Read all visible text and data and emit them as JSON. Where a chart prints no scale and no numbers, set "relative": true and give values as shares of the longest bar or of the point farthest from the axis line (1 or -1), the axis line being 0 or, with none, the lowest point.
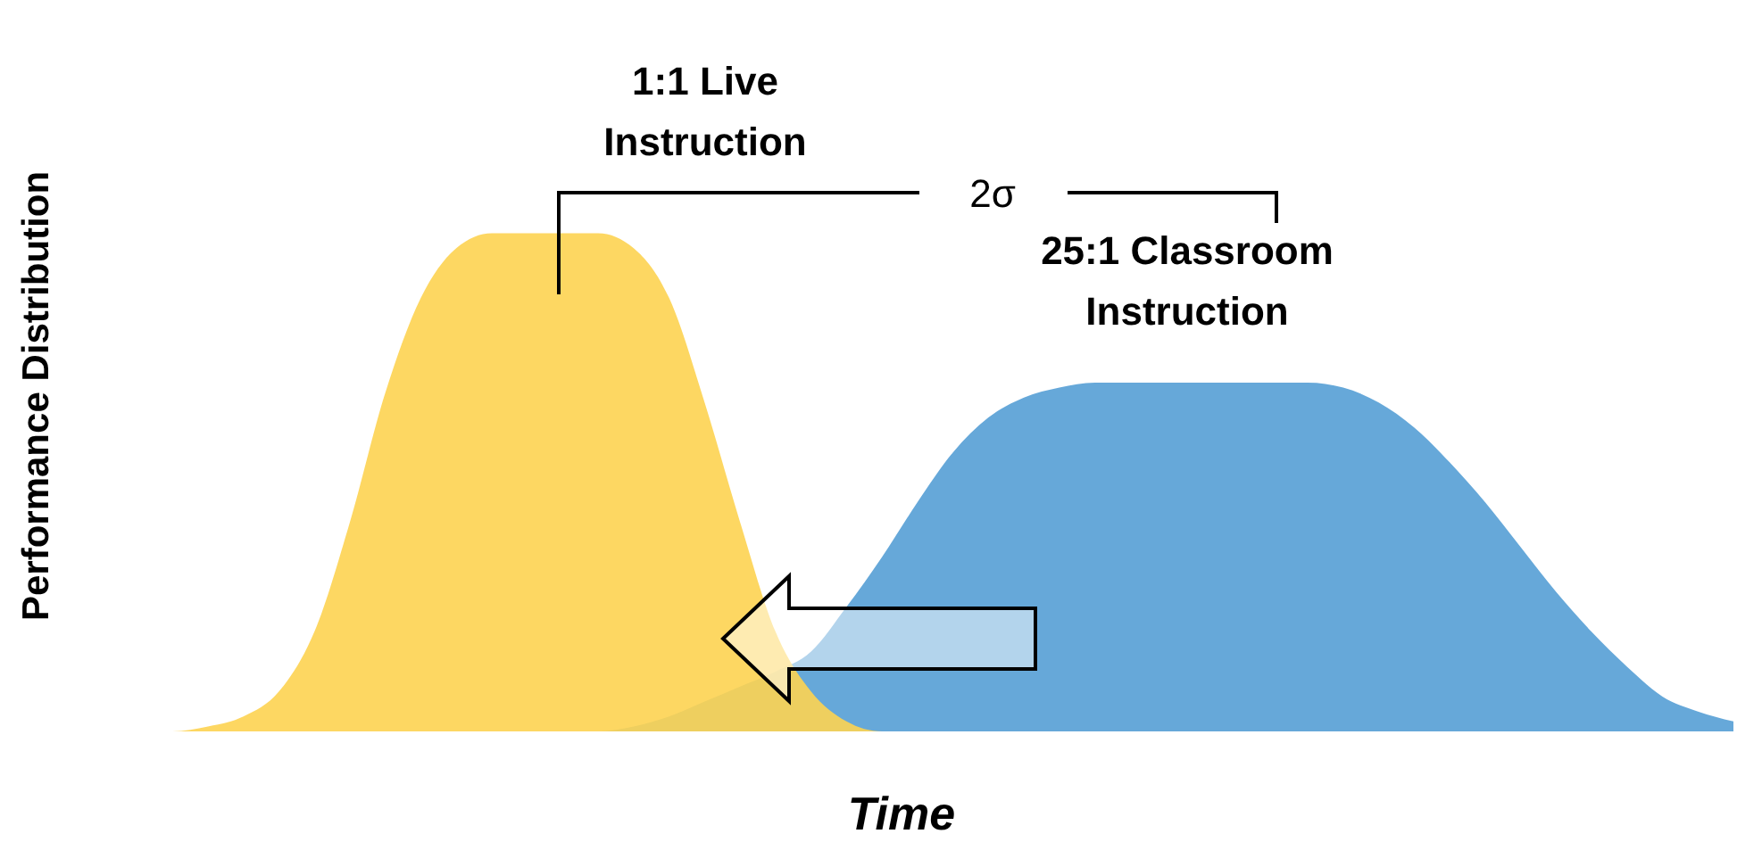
{
  "chart_data": {
    "type": "area",
    "relative": true,
    "xlabel": "Time",
    "ylabel": "Performance Distribution",
    "categories": [
      null,
      null,
      null,
      null,
      null,
      null,
      null,
      null,
      null,
      null,
      null,
      null,
      null,
      null,
      null,
      null,
      null,
      null,
      null,
      null,
      null,
      null,
      null,
      null,
      null,
      null,
      null,
      null,
      null,
      null,
      null,
      null,
      null,
      null,
      null,
      null,
      null,
      null,
      null,
      null,
      null,
      null,
      null,
      null,
      null,
      null,
      null,
      null
    ],
    "series": [
      {
        "name": "25:1 Classroom Instruction",
        "color": "#559fd5",
        "values": [
          0,
          0,
          0,
          0,
          0,
          0,
          0,
          0,
          0,
          0,
          0,
          0,
          0,
          0,
          0,
          0,
          0.01,
          0.03,
          0.06,
          0.09,
          0.12,
          0.16,
          0.25,
          0.35,
          0.46,
          0.56,
          0.63,
          0.67,
          0.69,
          0.7,
          0.7,
          0.7,
          0.7,
          0.7,
          0.7,
          0.7,
          0.69,
          0.66,
          0.61,
          0.54,
          0.46,
          0.37,
          0.28,
          0.2,
          0.13,
          0.07,
          0.04,
          0.02
        ]
      },
      {
        "name": "1:1 Live Instruction",
        "color": "#fdd351",
        "values": [
          0,
          0,
          0,
          0,
          0.01,
          0.03,
          0.08,
          0.2,
          0.42,
          0.68,
          0.87,
          0.97,
          1,
          1,
          1,
          1,
          0.97,
          0.87,
          0.66,
          0.42,
          0.2,
          0.08,
          0.02,
          0,
          0,
          0,
          0,
          0,
          0,
          0,
          0,
          0,
          0,
          0,
          0,
          0,
          0,
          0,
          0,
          0,
          0,
          0,
          0,
          0,
          0,
          0,
          0,
          0
        ]
      }
    ],
    "annotations": [
      "2σ"
    ],
    "legend": false,
    "grid": false
  }
}
